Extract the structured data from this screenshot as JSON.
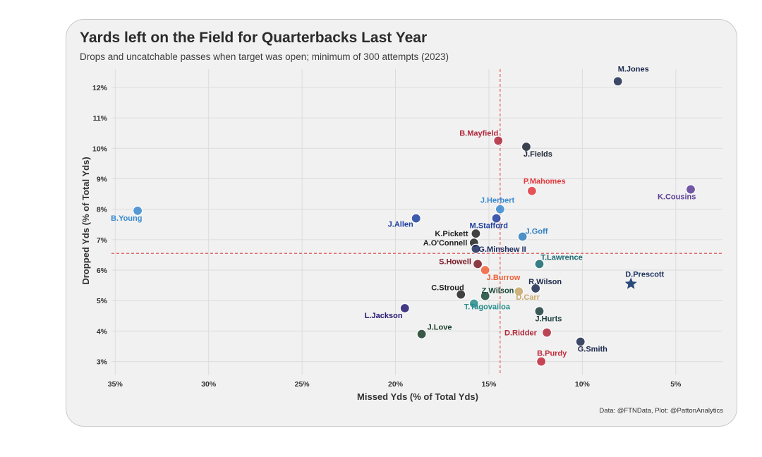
{
  "header": {
    "title": "Yards left on the Field for Quarterbacks Last Year",
    "subtitle": "Drops and uncatchable passes when target was open; minimum of 300 attempts (2023)"
  },
  "caption": "Data: @FTNData, Plot: @PattonAnalytics",
  "chart_data": {
    "type": "scatter",
    "xlabel": "Missed Yds (% of Total Yds)",
    "ylabel": "Dropped Yds (% of Total Yds)",
    "x_reversed": true,
    "xlim": [
      35.2,
      2.5
    ],
    "ylim": [
      2.55,
      12.6
    ],
    "x_ticks": [
      35,
      30,
      25,
      20,
      15,
      10,
      5
    ],
    "x_tick_labels": [
      "35%",
      "30%",
      "25%",
      "20%",
      "15%",
      "10%",
      "5%"
    ],
    "y_ticks": [
      3,
      4,
      5,
      6,
      7,
      8,
      9,
      10,
      11,
      12
    ],
    "y_tick_labels": [
      "3%",
      "4%",
      "5%",
      "6%",
      "7%",
      "8%",
      "9%",
      "10%",
      "11%",
      "12%"
    ],
    "grid": true,
    "reference_lines": {
      "x": 14.4,
      "y": 6.55,
      "color": "#e05a5a"
    },
    "points": [
      {
        "name": "M.Jones",
        "x": 8.1,
        "y": 12.2,
        "color": "#1d2a4d"
      },
      {
        "name": "B.Mayfield",
        "x": 14.5,
        "y": 10.25,
        "color": "#b0283a"
      },
      {
        "name": "J.Fields",
        "x": 13.0,
        "y": 10.05,
        "color": "#1c2233"
      },
      {
        "name": "P.Mahomes",
        "x": 12.7,
        "y": 8.6,
        "color": "#e0383d"
      },
      {
        "name": "K.Cousins",
        "x": 4.2,
        "y": 8.65,
        "color": "#5b3d96"
      },
      {
        "name": "J.Herbert",
        "x": 14.4,
        "y": 8.0,
        "color": "#3a8ad0"
      },
      {
        "name": "B.Young",
        "x": 33.8,
        "y": 7.95,
        "color": "#3a8ad0"
      },
      {
        "name": "M.Stafford",
        "x": 14.6,
        "y": 7.7,
        "color": "#2040a0"
      },
      {
        "name": "J.Allen",
        "x": 18.9,
        "y": 7.7,
        "color": "#1f3fa0"
      },
      {
        "name": "K.Pickett",
        "x": 15.7,
        "y": 7.2,
        "color": "#222222"
      },
      {
        "name": "J.Goff",
        "x": 13.2,
        "y": 7.1,
        "color": "#2f7fc0"
      },
      {
        "name": "A.O'Connell",
        "x": 15.8,
        "y": 6.9,
        "color": "#222222"
      },
      {
        "name": "G.Minshew II",
        "x": 15.7,
        "y": 6.7,
        "color": "#1f2d60"
      },
      {
        "name": "S.Howell",
        "x": 15.6,
        "y": 6.2,
        "color": "#7a1a26"
      },
      {
        "name": "T.Lawrence",
        "x": 12.3,
        "y": 6.2,
        "color": "#1a6a72"
      },
      {
        "name": "J.Burrow",
        "x": 15.2,
        "y": 6.0,
        "color": "#f0603a"
      },
      {
        "name": "D.Prescott",
        "x": 7.4,
        "y": 5.55,
        "color": "#1d3461"
      },
      {
        "name": "R.Wilson",
        "x": 12.5,
        "y": 5.4,
        "color": "#1d2a4d"
      },
      {
        "name": "C.Stroud",
        "x": 16.5,
        "y": 5.2,
        "color": "#222222"
      },
      {
        "name": "Z.Wilson",
        "x": 15.2,
        "y": 5.15,
        "color": "#1a4a3a"
      },
      {
        "name": "D.Carr",
        "x": 13.4,
        "y": 5.3,
        "color": "#c8a86a"
      },
      {
        "name": "T.Tagovailoa",
        "x": 15.8,
        "y": 4.9,
        "color": "#2a8c8c"
      },
      {
        "name": "L.Jackson",
        "x": 19.5,
        "y": 4.75,
        "color": "#241773"
      },
      {
        "name": "J.Hurts",
        "x": 12.3,
        "y": 4.65,
        "color": "#1d3d3d"
      },
      {
        "name": "J.Love",
        "x": 18.6,
        "y": 3.9,
        "color": "#1a3d2a"
      },
      {
        "name": "D.Ridder",
        "x": 11.9,
        "y": 3.95,
        "color": "#b0283a"
      },
      {
        "name": "G.Smith",
        "x": 10.1,
        "y": 3.65,
        "color": "#1d2a4d"
      },
      {
        "name": "B.Purdy",
        "x": 12.2,
        "y": 3.0,
        "color": "#c0283a"
      }
    ]
  }
}
